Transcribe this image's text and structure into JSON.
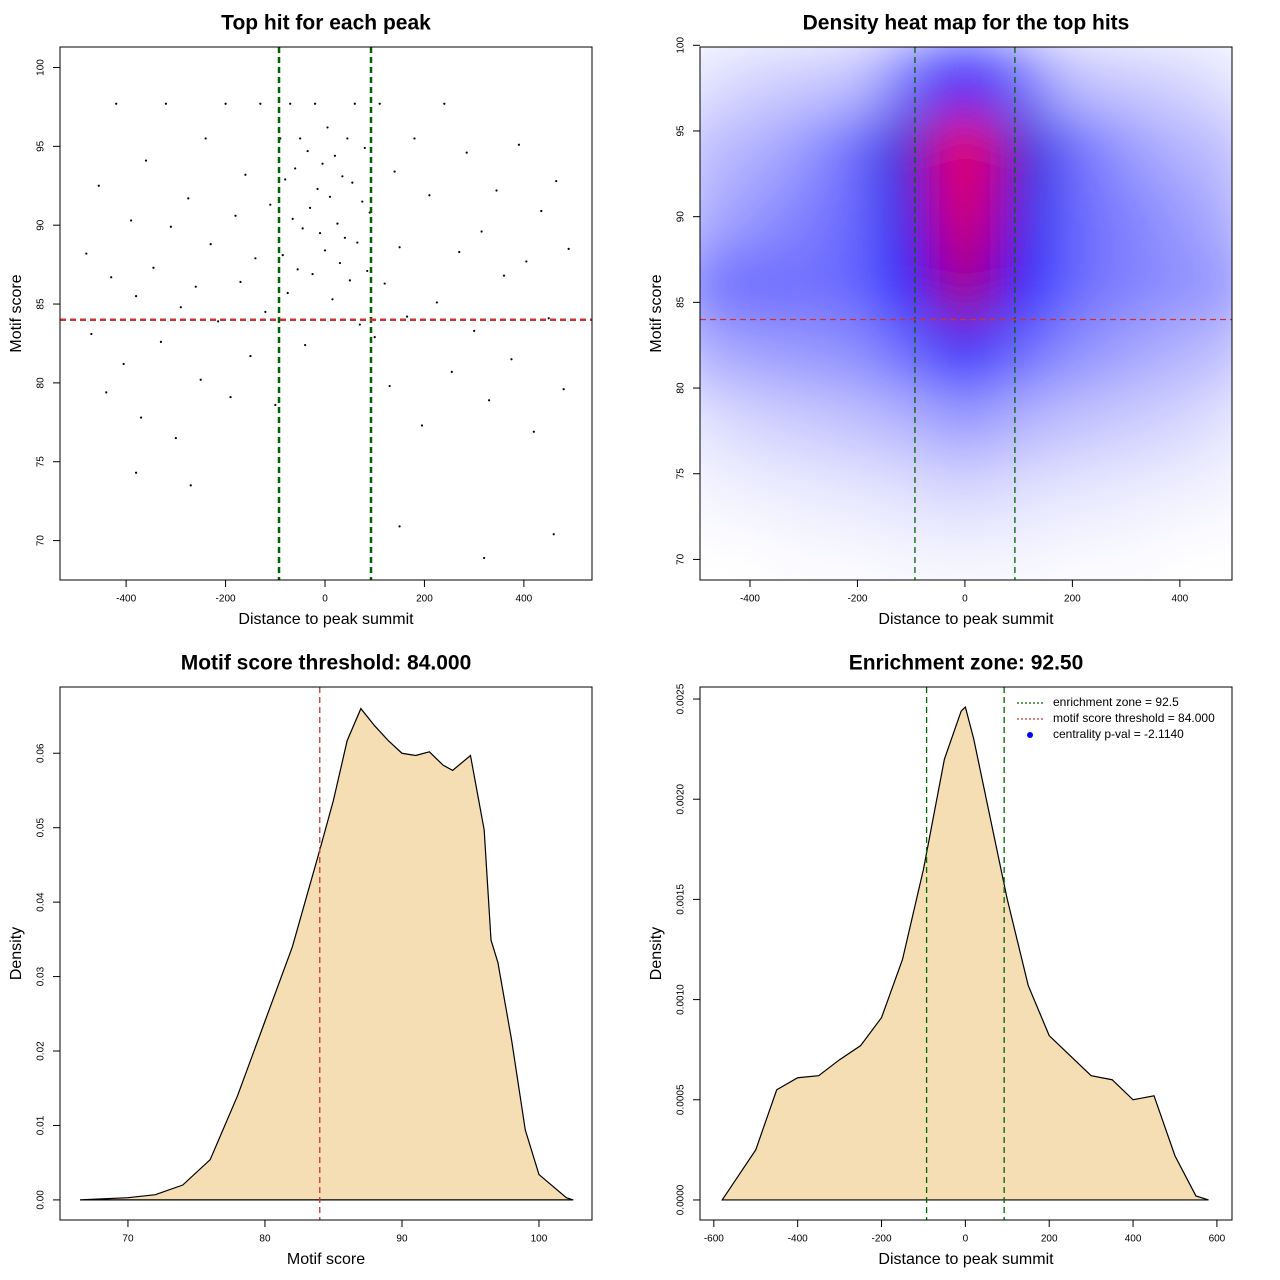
{
  "chart_data": [
    {
      "type": "scatter",
      "title": "Top hit for each peak",
      "xlabel": "Distance to peak summit",
      "ylabel": "Motif score",
      "xlim": [
        -533,
        537
      ],
      "ylim": [
        67.5,
        101.3
      ],
      "xticks": [
        -400,
        -200,
        0,
        200,
        400
      ],
      "yticks": [
        70,
        75,
        80,
        85,
        90,
        95,
        100
      ],
      "color": "#000000",
      "x": [
        -480,
        -470,
        -455,
        -440,
        -430,
        -420,
        -405,
        -390,
        -380,
        -370,
        -360,
        -345,
        -330,
        -320,
        -310,
        -300,
        -290,
        -275,
        -260,
        -250,
        -240,
        -230,
        -215,
        -200,
        -190,
        -180,
        -170,
        -160,
        -150,
        -140,
        -130,
        -120,
        -110,
        -100,
        -90,
        -85,
        -80,
        -75,
        -70,
        -65,
        -60,
        -55,
        -50,
        -45,
        -40,
        -35,
        -30,
        -25,
        -20,
        -15,
        -10,
        -5,
        0,
        5,
        10,
        15,
        20,
        25,
        30,
        35,
        40,
        45,
        50,
        55,
        60,
        65,
        70,
        75,
        80,
        85,
        90,
        100,
        110,
        120,
        130,
        140,
        150,
        165,
        180,
        195,
        210,
        225,
        240,
        255,
        270,
        285,
        300,
        315,
        330,
        345,
        360,
        375,
        390,
        405,
        420,
        435,
        450,
        465,
        480,
        490,
        -270,
        320,
        150,
        -380,
        460
      ],
      "values": [
        88.2,
        83.1,
        92.5,
        79.4,
        86.7,
        97.7,
        81.2,
        90.3,
        85.5,
        77.8,
        94.1,
        87.3,
        82.6,
        97.7,
        89.9,
        76.5,
        84.8,
        91.7,
        86.1,
        80.2,
        95.5,
        88.8,
        83.9,
        97.7,
        79.1,
        90.6,
        86.4,
        93.2,
        81.7,
        87.9,
        97.7,
        84.5,
        91.3,
        78.6,
        95.5,
        88.1,
        92.9,
        85.7,
        97.7,
        90.4,
        93.6,
        87.2,
        95.5,
        89.8,
        82.4,
        94.7,
        91.1,
        86.9,
        97.7,
        92.3,
        89.5,
        93.9,
        88.4,
        96.2,
        91.8,
        85.3,
        94.4,
        90.1,
        87.6,
        93.1,
        89.2,
        95.5,
        86.5,
        92.7,
        97.7,
        88.9,
        83.7,
        91.5,
        94.9,
        87.1,
        90.8,
        82.9,
        97.7,
        86.3,
        79.8,
        93.4,
        88.6,
        84.2,
        95.5,
        77.3,
        91.9,
        85.1,
        97.7,
        80.7,
        88.3,
        94.6,
        83.3,
        89.6,
        78.9,
        92.2,
        86.8,
        81.5,
        95.1,
        87.7,
        76.9,
        90.9,
        84.1,
        92.8,
        79.6,
        88.5,
        73.5,
        68.9,
        70.9,
        74.3,
        70.4
      ],
      "vlines": [
        -92.5,
        92.5
      ],
      "vline_color": "#006400",
      "hlines": [
        84
      ],
      "hline_color": "#cc3333"
    },
    {
      "type": "heatmap",
      "title": "Density heat map for the top hits",
      "xlabel": "Distance to peak summit",
      "ylabel": "Motif score",
      "xlim": [
        -493,
        497
      ],
      "ylim": [
        68.8,
        99.9
      ],
      "xticks": [
        -400,
        -200,
        0,
        200,
        400
      ],
      "yticks": [
        70,
        75,
        80,
        85,
        90,
        95,
        100
      ],
      "colors": [
        "#ffffff",
        "#0000ff",
        "#ff0000"
      ],
      "x": [
        -500,
        -400,
        -300,
        -200,
        -100,
        0,
        100,
        200,
        300,
        400,
        500
      ],
      "y": [
        70,
        74,
        78,
        82,
        86,
        90,
        94,
        98
      ],
      "z": [
        [
          0,
          0,
          0.01,
          0.01,
          0.02,
          0.02,
          0.02,
          0.01,
          0.01,
          0,
          0
        ],
        [
          0.02,
          0.03,
          0.04,
          0.05,
          0.06,
          0.08,
          0.06,
          0.05,
          0.04,
          0.03,
          0.02
        ],
        [
          0.05,
          0.08,
          0.1,
          0.12,
          0.15,
          0.2,
          0.15,
          0.12,
          0.1,
          0.08,
          0.05
        ],
        [
          0.15,
          0.18,
          0.2,
          0.22,
          0.3,
          0.45,
          0.3,
          0.22,
          0.18,
          0.15,
          0.12
        ],
        [
          0.25,
          0.3,
          0.28,
          0.3,
          0.5,
          0.85,
          0.5,
          0.3,
          0.25,
          0.22,
          0.2
        ],
        [
          0.15,
          0.2,
          0.25,
          0.3,
          0.55,
          0.95,
          0.55,
          0.3,
          0.25,
          0.2,
          0.15
        ],
        [
          0.12,
          0.15,
          0.2,
          0.3,
          0.6,
          1.0,
          0.6,
          0.3,
          0.2,
          0.15,
          0.12
        ],
        [
          0.05,
          0.08,
          0.1,
          0.12,
          0.3,
          0.5,
          0.3,
          0.12,
          0.1,
          0.08,
          0.05
        ]
      ],
      "vlines": [
        -93,
        93
      ],
      "vline_color": "#006400",
      "hlines": [
        84
      ],
      "hline_color": "#cc3333"
    },
    {
      "type": "area",
      "title": "Motif score threshold: 84.000",
      "xlabel": "Motif score",
      "ylabel": "Density",
      "xlim": [
        65.04,
        103.87
      ],
      "ylim": [
        -0.0027,
        0.0689
      ],
      "xticks": [
        70,
        80,
        90,
        100
      ],
      "yticks": [
        {
          "value": 0,
          "label": "0.00"
        },
        0.01,
        0.02,
        0.03,
        0.04,
        0.05,
        0.06
      ],
      "color": "#f5deb3",
      "line_color": "#000000",
      "x": [
        66.5,
        70,
        72,
        74,
        76,
        78,
        80,
        82,
        84,
        85,
        86,
        87,
        88,
        89,
        90,
        91,
        92,
        93,
        93.7,
        95,
        96,
        96.5,
        97,
        98,
        99,
        100,
        102,
        102.5
      ],
      "values": [
        0,
        0.0003,
        0.0007,
        0.002,
        0.0054,
        0.014,
        0.024,
        0.034,
        0.047,
        0.0537,
        0.0617,
        0.066,
        0.0637,
        0.0617,
        0.06,
        0.0597,
        0.0602,
        0.0584,
        0.0577,
        0.0597,
        0.0497,
        0.0349,
        0.0319,
        0.0215,
        0.0094,
        0.0034,
        0.0003,
        0
      ],
      "vlines": [
        84
      ],
      "vline_color": "#cc3333"
    },
    {
      "type": "area",
      "title": "Enrichment zone: 92.50",
      "xlabel": "Distance to peak summit",
      "ylabel": "Density",
      "xlim": [
        -633,
        636
      ],
      "ylim": [
        -0.0001,
        0.00256
      ],
      "xticks": [
        -600,
        -400,
        -200,
        0,
        200,
        400,
        600
      ],
      "yticks": [
        {
          "value": 0,
          "label": "0.0000"
        },
        0.0005,
        {
          "value": 0.001,
          "label": "0.0010"
        },
        0.0015,
        {
          "value": 0.002,
          "label": "0.0020"
        },
        0.0025
      ],
      "color": "#f5deb3",
      "line_color": "#000000",
      "x": [
        -580,
        -500,
        -450,
        -400,
        -350,
        -300,
        -250,
        -200,
        -150,
        -100,
        -50,
        -10,
        0,
        20,
        50,
        100,
        150,
        200,
        250,
        300,
        350,
        400,
        450,
        500,
        550,
        580
      ],
      "values": [
        0,
        0.00025,
        0.00055,
        0.00061,
        0.00062,
        0.0007,
        0.00077,
        0.00091,
        0.0012,
        0.00165,
        0.0022,
        0.00244,
        0.00246,
        0.0023,
        0.002,
        0.0015,
        0.00107,
        0.00082,
        0.00072,
        0.00062,
        0.0006,
        0.0005,
        0.00052,
        0.00022,
        2e-05,
        0
      ],
      "vlines": [
        -92.5,
        92.5
      ],
      "vline_color": "#006400",
      "legend_corner": "topright",
      "legend": [
        {
          "label": "enrichment zone = 92.5",
          "color": "#006400",
          "symbol": "line"
        },
        {
          "label": "motif score threshold = 84.000",
          "color": "#cc3333",
          "symbol": "line"
        },
        {
          "label": "centrality p-val = -2.1140",
          "color": "#0000ff",
          "symbol": "point"
        }
      ]
    }
  ]
}
